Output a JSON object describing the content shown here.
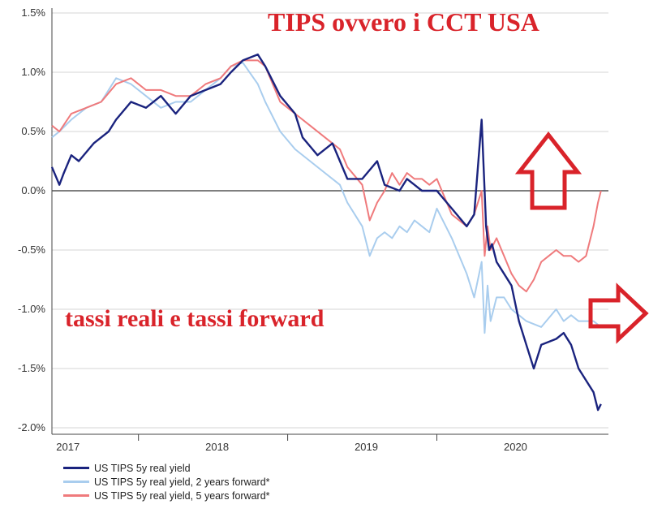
{
  "chart_data": {
    "type": "line",
    "title": "TIPS ovvero i CCT USA",
    "subtitle": "tassi reali e tassi forward",
    "y_ticks": [
      "1.5%",
      "1.0%",
      "0.5%",
      "0.0%",
      "-0.5%",
      "-1.0%",
      "-1.5%",
      "-2.0%"
    ],
    "y_tick_values": [
      1.5,
      1.0,
      0.5,
      0.0,
      -0.5,
      -1.0,
      -1.5,
      -2.0
    ],
    "x_ticks": [
      "2017",
      "2018",
      "2019",
      "2020"
    ],
    "x_tick_values": [
      2017.0,
      2018.0,
      2019.0,
      2020.0
    ],
    "xlim": [
      2016.92,
      2020.65
    ],
    "ylim": [
      -2.0,
      1.5
    ],
    "zero_line": true,
    "grid": "horizontal",
    "series": [
      {
        "name": "US TIPS 5y real yield",
        "color": "#1a237e",
        "x": [
          2016.92,
          2016.97,
          2017.0,
          2017.05,
          2017.1,
          2017.2,
          2017.3,
          2017.35,
          2017.45,
          2017.55,
          2017.65,
          2017.75,
          2017.85,
          2017.95,
          2018.05,
          2018.12,
          2018.2,
          2018.3,
          2018.35,
          2018.45,
          2018.55,
          2018.6,
          2018.7,
          2018.8,
          2018.9,
          2019.0,
          2019.1,
          2019.15,
          2019.25,
          2019.3,
          2019.4,
          2019.5,
          2019.6,
          2019.7,
          2019.75,
          2019.8,
          2019.83,
          2019.85,
          2019.87,
          2019.9,
          2019.95,
          2020.0,
          2020.05,
          2020.1,
          2020.15,
          2020.2,
          2020.3,
          2020.35,
          2020.4,
          2020.45,
          2020.5,
          2020.55,
          2020.58,
          2020.6
        ],
        "values": [
          0.2,
          0.05,
          0.15,
          0.3,
          0.25,
          0.4,
          0.5,
          0.6,
          0.75,
          0.7,
          0.8,
          0.65,
          0.8,
          0.85,
          0.9,
          1.0,
          1.1,
          1.15,
          1.05,
          0.8,
          0.65,
          0.45,
          0.3,
          0.4,
          0.1,
          0.1,
          0.25,
          0.05,
          0.0,
          0.1,
          0.0,
          0.0,
          -0.15,
          -0.3,
          -0.2,
          0.6,
          -0.3,
          -0.5,
          -0.45,
          -0.6,
          -0.7,
          -0.8,
          -1.1,
          -1.3,
          -1.5,
          -1.3,
          -1.25,
          -1.2,
          -1.3,
          -1.5,
          -1.6,
          -1.7,
          -1.85,
          -1.8
        ]
      },
      {
        "name": "US TIPS 5y real yield, 2 years forward*",
        "color": "#a9cdee",
        "x": [
          2016.92,
          2016.97,
          2017.05,
          2017.15,
          2017.25,
          2017.35,
          2017.45,
          2017.55,
          2017.65,
          2017.75,
          2017.85,
          2017.95,
          2018.05,
          2018.12,
          2018.2,
          2018.3,
          2018.35,
          2018.45,
          2018.55,
          2018.65,
          2018.75,
          2018.85,
          2018.9,
          2019.0,
          2019.05,
          2019.1,
          2019.15,
          2019.2,
          2019.25,
          2019.3,
          2019.35,
          2019.4,
          2019.45,
          2019.5,
          2019.6,
          2019.7,
          2019.75,
          2019.8,
          2019.82,
          2019.84,
          2019.86,
          2019.88,
          2019.9,
          2019.95,
          2020.0,
          2020.05,
          2020.1,
          2020.2,
          2020.3,
          2020.35,
          2020.4,
          2020.45,
          2020.5,
          2020.55,
          2020.6
        ],
        "values": [
          0.45,
          0.5,
          0.6,
          0.7,
          0.75,
          0.95,
          0.9,
          0.8,
          0.7,
          0.75,
          0.75,
          0.85,
          0.95,
          1.05,
          1.08,
          0.9,
          0.75,
          0.5,
          0.35,
          0.25,
          0.15,
          0.05,
          -0.1,
          -0.3,
          -0.55,
          -0.4,
          -0.35,
          -0.4,
          -0.3,
          -0.35,
          -0.25,
          -0.3,
          -0.35,
          -0.15,
          -0.4,
          -0.7,
          -0.9,
          -0.6,
          -1.2,
          -0.8,
          -1.1,
          -1.0,
          -0.9,
          -0.9,
          -1.0,
          -1.05,
          -1.1,
          -1.15,
          -1.0,
          -1.1,
          -1.05,
          -1.1,
          -1.1,
          -1.1,
          -1.15
        ]
      },
      {
        "name": "US TIPS 5y real yield, 5 years forward*",
        "color": "#ef7a7c",
        "x": [
          2016.92,
          2016.97,
          2017.05,
          2017.15,
          2017.25,
          2017.35,
          2017.45,
          2017.55,
          2017.65,
          2017.75,
          2017.85,
          2017.95,
          2018.05,
          2018.12,
          2018.2,
          2018.3,
          2018.35,
          2018.45,
          2018.55,
          2018.65,
          2018.75,
          2018.85,
          2018.9,
          2019.0,
          2019.05,
          2019.1,
          2019.15,
          2019.2,
          2019.25,
          2019.3,
          2019.35,
          2019.4,
          2019.45,
          2019.5,
          2019.6,
          2019.7,
          2019.75,
          2019.8,
          2019.82,
          2019.84,
          2019.86,
          2019.9,
          2019.95,
          2020.0,
          2020.05,
          2020.1,
          2020.15,
          2020.2,
          2020.25,
          2020.3,
          2020.35,
          2020.4,
          2020.45,
          2020.5,
          2020.55,
          2020.58,
          2020.6
        ],
        "values": [
          0.55,
          0.5,
          0.65,
          0.7,
          0.75,
          0.9,
          0.95,
          0.85,
          0.85,
          0.8,
          0.8,
          0.9,
          0.95,
          1.05,
          1.1,
          1.1,
          1.05,
          0.75,
          0.65,
          0.55,
          0.45,
          0.35,
          0.2,
          0.05,
          -0.25,
          -0.1,
          0.0,
          0.15,
          0.05,
          0.15,
          0.1,
          0.1,
          0.05,
          0.1,
          -0.2,
          -0.3,
          -0.2,
          0.0,
          -0.55,
          -0.3,
          -0.5,
          -0.4,
          -0.55,
          -0.7,
          -0.8,
          -0.85,
          -0.75,
          -0.6,
          -0.55,
          -0.5,
          -0.55,
          -0.55,
          -0.6,
          -0.55,
          -0.3,
          -0.1,
          0.0
        ]
      }
    ],
    "annotations": {
      "arrow_up_color": "#d9232a",
      "arrow_right_color": "#d9232a"
    }
  }
}
